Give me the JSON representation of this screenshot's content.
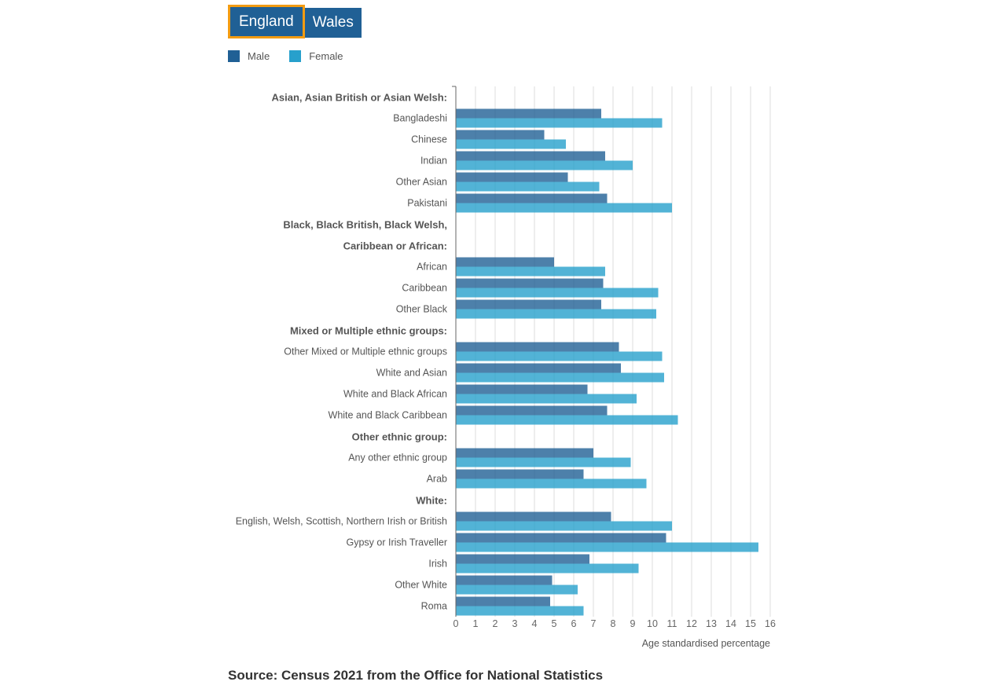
{
  "tabs": [
    {
      "label": "England",
      "selected": true
    },
    {
      "label": "Wales",
      "selected": false
    }
  ],
  "colors": {
    "tab_bg": "#206095",
    "tab_border": "#f39c12",
    "male": "#206095",
    "female": "#27a0cc",
    "text": "#555555",
    "grid": "#dddddd"
  },
  "legend": [
    {
      "label": "Male",
      "color": "#206095"
    },
    {
      "label": "Female",
      "color": "#27a0cc"
    }
  ],
  "chart_data": {
    "type": "bar",
    "orientation": "horizontal",
    "series_names": [
      "Male",
      "Female"
    ],
    "xlabel": "Age standardised percentage",
    "xlim": [
      0,
      16
    ],
    "xticks": [
      0,
      1,
      2,
      3,
      4,
      5,
      6,
      7,
      8,
      9,
      10,
      11,
      12,
      13,
      14,
      15,
      16
    ],
    "grid": true,
    "legend_position": "top-left",
    "groups": [
      {
        "heading": [
          "Asian, Asian British or Asian Welsh:"
        ],
        "rows": [
          {
            "label": "Bangladeshi",
            "male": 7.4,
            "female": 10.5
          },
          {
            "label": "Chinese",
            "male": 4.5,
            "female": 5.6
          },
          {
            "label": "Indian",
            "male": 7.6,
            "female": 9.0
          },
          {
            "label": "Other Asian",
            "male": 5.7,
            "female": 7.3
          },
          {
            "label": "Pakistani",
            "male": 7.7,
            "female": 11.0
          }
        ]
      },
      {
        "heading": [
          "Black, Black British, Black Welsh,",
          "Caribbean or African:"
        ],
        "rows": [
          {
            "label": "African",
            "male": 5.0,
            "female": 7.6
          },
          {
            "label": "Caribbean",
            "male": 7.5,
            "female": 10.3
          },
          {
            "label": "Other Black",
            "male": 7.4,
            "female": 10.2
          }
        ]
      },
      {
        "heading": [
          "Mixed or Multiple ethnic groups:"
        ],
        "rows": [
          {
            "label": "Other Mixed or Multiple ethnic groups",
            "male": 8.3,
            "female": 10.5
          },
          {
            "label": "White and Asian",
            "male": 8.4,
            "female": 10.6
          },
          {
            "label": "White and Black African",
            "male": 6.7,
            "female": 9.2
          },
          {
            "label": "White and Black Caribbean",
            "male": 7.7,
            "female": 11.3
          }
        ]
      },
      {
        "heading": [
          "Other ethnic group:"
        ],
        "rows": [
          {
            "label": "Any other ethnic group",
            "male": 7.0,
            "female": 8.9
          },
          {
            "label": "Arab",
            "male": 6.5,
            "female": 9.7
          }
        ]
      },
      {
        "heading": [
          "White:"
        ],
        "rows": [
          {
            "label": "English, Welsh, Scottish, Northern Irish or British",
            "male": 7.9,
            "female": 11.0
          },
          {
            "label": "Gypsy or Irish Traveller",
            "male": 10.7,
            "female": 15.4
          },
          {
            "label": "Irish",
            "male": 6.8,
            "female": 9.3
          },
          {
            "label": "Other White",
            "male": 4.9,
            "female": 6.2
          },
          {
            "label": "Roma",
            "male": 4.8,
            "female": 6.5
          }
        ]
      }
    ]
  },
  "source": "Source: Census 2021 from the Office for National Statistics"
}
